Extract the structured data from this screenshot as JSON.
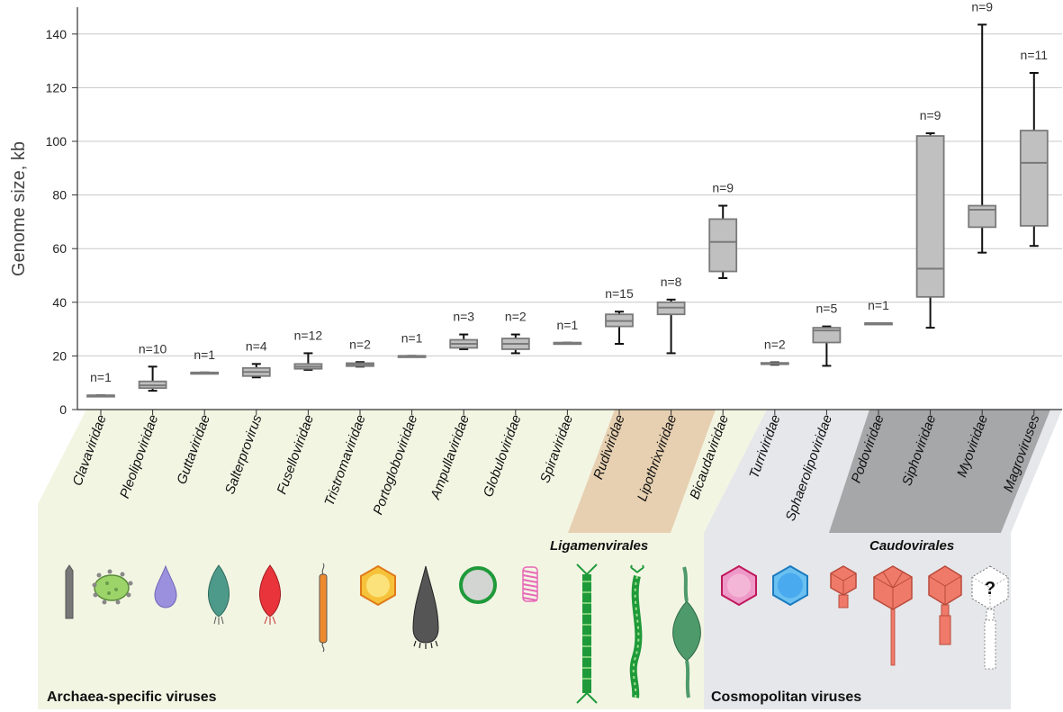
{
  "chart_data": {
    "type": "box",
    "ylabel": "Genome size, kb",
    "ylim": [
      0,
      150
    ],
    "yticks": [
      0,
      20,
      40,
      60,
      80,
      100,
      120,
      140
    ],
    "grid": true,
    "categories": [
      "Clavaviridae",
      "Pleolipoviridae",
      "Guttaviridae",
      "Salterprovirus",
      "Fuselloviridae",
      "Tristromaviridae",
      "Portogloboviridae",
      "Ampullaviridae",
      "Globuloviridae",
      "Spiraviridae",
      "Rudiviridae",
      "Lipothrixviridae",
      "Bicaudaviridae",
      "Turriviridae",
      "Sphaerolipoviridae",
      "Podoviridae",
      "Siphoviridae",
      "Myoviridae",
      "Magroviruses"
    ],
    "series": [
      {
        "values": [
          {
            "n": "n=1",
            "min": 5.3,
            "q1": 5.3,
            "median": 5.3,
            "q3": 5.3,
            "max": 5.3
          },
          {
            "n": "n=10",
            "min": 7,
            "q1": 8,
            "median": 9,
            "q3": 10.5,
            "max": 16
          },
          {
            "n": "n=1",
            "min": 13.8,
            "q1": 13.8,
            "median": 13.8,
            "q3": 13.8,
            "max": 13.8
          },
          {
            "n": "n=4",
            "min": 12,
            "q1": 12.5,
            "median": 14,
            "q3": 15.5,
            "max": 17
          },
          {
            "n": "n=12",
            "min": 14.8,
            "q1": 15.2,
            "median": 16,
            "q3": 17,
            "max": 21
          },
          {
            "n": "n=2",
            "min": 16,
            "q1": 16.2,
            "median": 16.8,
            "q3": 17.3,
            "max": 17.7
          },
          {
            "n": "n=1",
            "min": 20,
            "q1": 20,
            "median": 20,
            "q3": 20,
            "max": 20
          },
          {
            "n": "n=3",
            "min": 22.5,
            "q1": 23,
            "median": 24.5,
            "q3": 26,
            "max": 28
          },
          {
            "n": "n=2",
            "min": 21,
            "q1": 22.5,
            "median": 24.5,
            "q3": 26.5,
            "max": 28
          },
          {
            "n": "n=1",
            "min": 24.9,
            "q1": 24.9,
            "median": 24.9,
            "q3": 24.9,
            "max": 24.9
          },
          {
            "n": "n=15",
            "min": 24.5,
            "q1": 31,
            "median": 33,
            "q3": 35.5,
            "max": 36.5
          },
          {
            "n": "n=8",
            "min": 21,
            "q1": 35.5,
            "median": 38,
            "q3": 40,
            "max": 41
          },
          {
            "n": "n=9",
            "min": 49,
            "q1": 51.5,
            "median": 62.5,
            "q3": 71,
            "max": 76
          },
          {
            "n": "n=2",
            "min": 16.7,
            "q1": 16.9,
            "median": 17.2,
            "q3": 17.4,
            "max": 17.6
          },
          {
            "n": "n=5",
            "min": 16.3,
            "q1": 25,
            "median": 29.5,
            "q3": 30.5,
            "max": 31
          },
          {
            "n": "n=1",
            "min": 32.2,
            "q1": 32.2,
            "median": 32.2,
            "q3": 32.2,
            "max": 32.2
          },
          {
            "n": "n=9",
            "min": 30.5,
            "q1": 42,
            "median": 52.5,
            "q3": 102,
            "max": 103
          },
          {
            "n": "n=9",
            "min": 58.5,
            "q1": 68,
            "median": 74.5,
            "q3": 76,
            "max": 143.5
          },
          {
            "n": "n=11",
            "min": 61,
            "q1": 68.5,
            "median": 92,
            "q3": 104,
            "max": 125.5
          }
        ]
      }
    ]
  },
  "colors": {
    "box_fill": "#c0c0c0",
    "box_stroke": "#7a7a7a",
    "archaea_bg": "#f3f5e3",
    "cosmo_bg": "#e6e7ea",
    "ligamenvirales_band": "#e7d0b1",
    "caudovirales_band": "#a6a7a9"
  },
  "groups": {
    "archaea_label": "Archaea-specific viruses",
    "cosmopolitan_label": "Cosmopolitan viruses",
    "ligamenvirales_label": "Ligamenvirales",
    "caudovirales_label": "Caudovirales"
  },
  "icons": [
    "rod-virion-icon",
    "pleomorphic-virion-icon",
    "droplet-virion-icon",
    "spindle-tailed-virion-icon",
    "spindle-red-virion-icon",
    "filament-virion-icon",
    "hexagonal-virion-icon",
    "bottle-virion-icon",
    "spherical-virion-icon",
    "coil-virion-icon",
    "filamentous-green-virion-icon",
    "filamentous-wavy-virion-icon",
    "two-tailed-spindle-icon",
    "turreted-icosahedral-icon",
    "spherical-lipid-icosahedral-icon",
    "short-tailed-phage-icon",
    "long-tailed-phage-icon",
    "contractile-tailed-phage-icon",
    "unknown-phage-icon"
  ],
  "unknown_icon_glyph": "?"
}
